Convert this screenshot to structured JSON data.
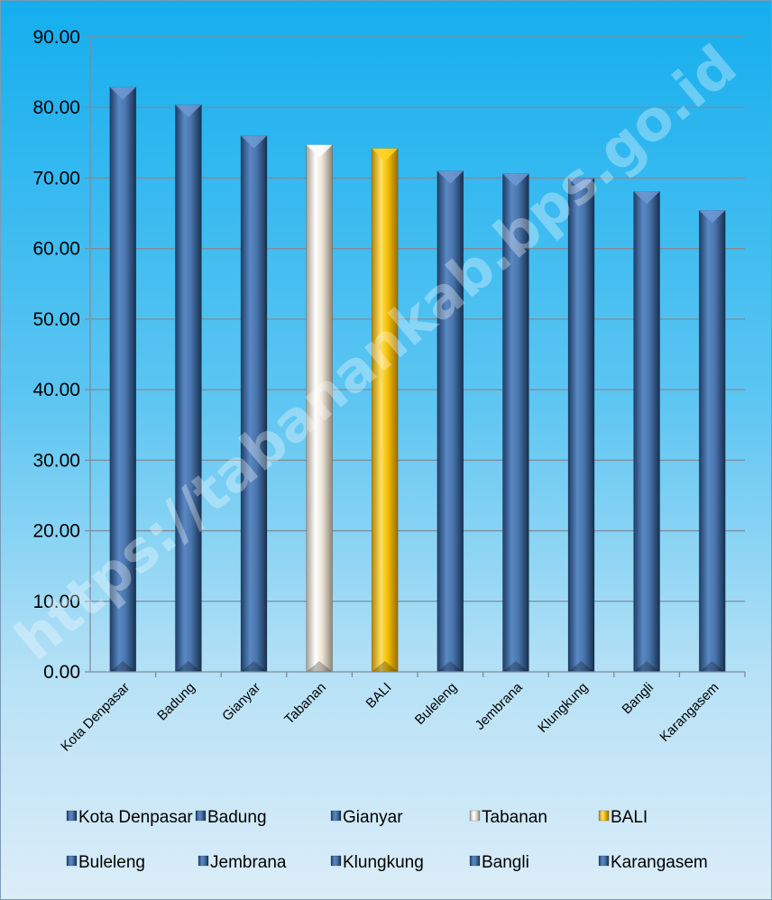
{
  "chart_data": {
    "type": "bar",
    "categories": [
      "Kota Denpasar",
      "Badung",
      "Gianyar",
      "Tabanan",
      "BALI",
      "Buleleng",
      "Jembrana",
      "Klungkung",
      "Bangli",
      "Karangasem"
    ],
    "values": [
      82.9,
      80.4,
      76.0,
      74.7,
      74.2,
      71.0,
      70.6,
      70.0,
      68.1,
      65.4
    ],
    "ylim": [
      0,
      90
    ],
    "y_ticks": [
      "0.00",
      "10.00",
      "20.00",
      "30.00",
      "40.00",
      "50.00",
      "60.00",
      "70.00",
      "80.00",
      "90.00"
    ],
    "grid": true,
    "legend_placement": "bottom",
    "bar_colors": [
      "#4a76ad",
      "#4a76ad",
      "#4a76ad",
      "#e6ddcf",
      "#f5c000",
      "#4a76ad",
      "#4a76ad",
      "#4a76ad",
      "#4a76ad",
      "#4a76ad"
    ],
    "watermark": "https://tabanankab.bps.go.id"
  }
}
